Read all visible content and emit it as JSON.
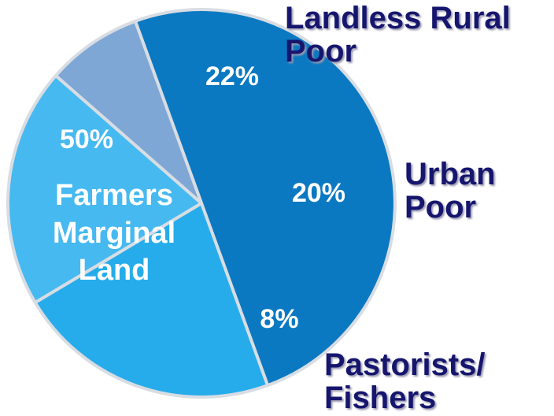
{
  "chart_data": {
    "type": "pie",
    "categories": [
      "Farmers Marginal Land",
      "Landless Rural Poor",
      "Urban Poor",
      "Pastorists/ Fishers"
    ],
    "values": [
      50,
      22,
      20,
      8
    ],
    "value_labels": [
      "50%",
      "22%",
      "20%",
      "8%"
    ],
    "colors": [
      "#0b79c2",
      "#27aceb",
      "#46b9f0",
      "#7ea7d6"
    ]
  }
}
